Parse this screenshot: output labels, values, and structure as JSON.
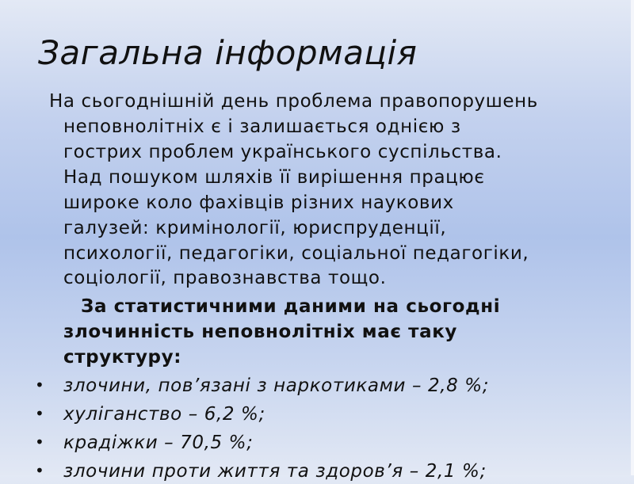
{
  "slide": {
    "title": "Загальна інформація",
    "paragraph_lines": [
      "На сьогоднішній день проблема правопорушень",
      "неповнолітніх є і залишається однією з",
      "гострих проблем українського суспільства.",
      "Над пошуком шляхів її вирішення працює",
      "широке коло фахівців різних наукових",
      "галузей: кримінології, юриспруденції,",
      "психології, педагогіки, соціальної педагогіки,",
      "соціології, правознавства тощо."
    ],
    "stats_intro_lines": [
      "За статистичними даними на сьогодні",
      "злочинність неповнолітніх має таку",
      "структуру:"
    ],
    "bullets": [
      "злочини, пов’язані з наркотиками – 2,8 %;",
      "хуліганство – 6,2 %;",
      "крадіжки – 70,5 %;",
      "злочини проти життя та здоров’я – 2,1 %;"
    ],
    "bullet_symbol": "•"
  }
}
